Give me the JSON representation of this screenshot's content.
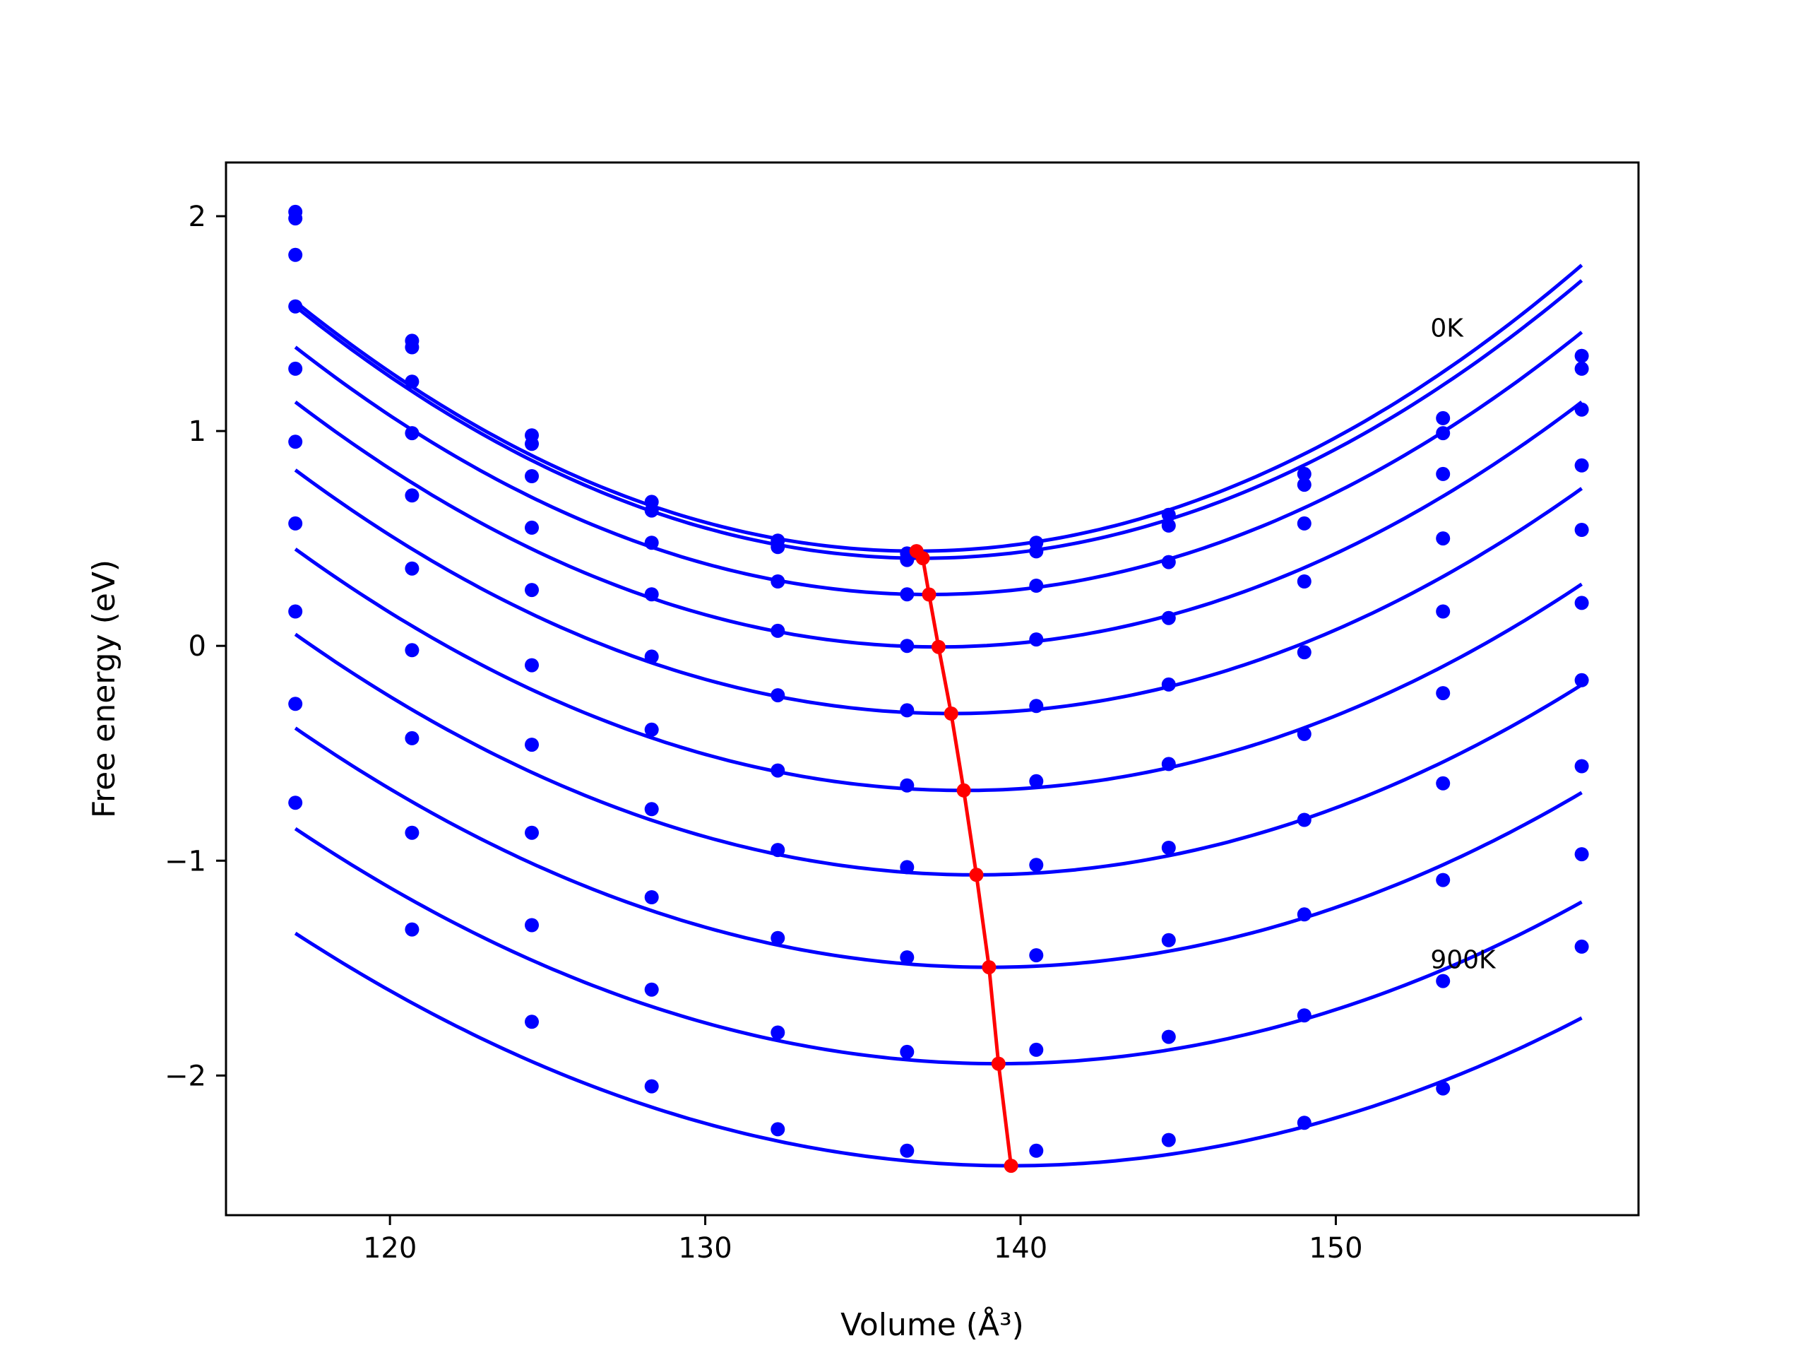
{
  "chart_data": {
    "type": "scatter",
    "title": "",
    "xlabel": "Volume (Å³)",
    "ylabel": "Free energy (eV)",
    "xlim": [
      114.8,
      159.6
    ],
    "ylim": [
      -2.65,
      2.25
    ],
    "xticks": [
      120,
      130,
      140,
      150
    ],
    "xtick_labels": [
      "120",
      "130",
      "140",
      "150"
    ],
    "yticks": [
      -2,
      -1,
      0,
      1,
      2
    ],
    "ytick_labels": [
      "−2",
      "−1",
      "0",
      "1",
      "2"
    ],
    "grid": false,
    "legend": "none",
    "annotations": [
      {
        "text": "0K",
        "x": 153.0,
        "y": 1.44
      },
      {
        "text": "900K",
        "x": 153.0,
        "y": -1.5
      }
    ],
    "colors": {
      "data": "#0000ff",
      "minima": "#ff0000"
    },
    "volumes": [
      117.0,
      120.7,
      124.5,
      128.3,
      132.3,
      136.4,
      140.5,
      144.7,
      149.0,
      153.4,
      157.8
    ],
    "series": [
      {
        "energies": [
          2.02,
          1.42,
          0.98,
          0.67,
          0.49,
          0.43,
          0.48,
          0.61,
          0.8,
          1.06,
          1.35
        ],
        "fit": {
          "a": 0.00299,
          "v0": 136.7,
          "e0": 0.441,
          "vmin": 117.0,
          "vmax": 157.8
        }
      },
      {
        "energies": [
          1.99,
          1.39,
          0.94,
          0.63,
          0.46,
          0.4,
          0.44,
          0.56,
          0.75,
          0.99,
          1.29
        ],
        "fit": {
          "a": 0.00296,
          "v0": 136.9,
          "e0": 0.408,
          "vmin": 117.0,
          "vmax": 157.8
        }
      },
      {
        "energies": [
          1.82,
          1.23,
          0.79,
          0.48,
          0.3,
          0.24,
          0.28,
          0.39,
          0.57,
          0.8,
          1.1
        ],
        "fit": {
          "a": 0.00285,
          "v0": 137.1,
          "e0": 0.239,
          "vmin": 117.0,
          "vmax": 157.8
        }
      },
      {
        "energies": [
          1.58,
          0.99,
          0.55,
          0.24,
          0.07,
          0.0,
          0.03,
          0.13,
          0.3,
          0.5,
          0.84
        ],
        "fit": {
          "a": 0.00274,
          "v0": 137.4,
          "e0": -0.005,
          "vmin": 117.0,
          "vmax": 157.8
        }
      },
      {
        "energies": [
          1.29,
          0.7,
          0.26,
          -0.05,
          -0.23,
          -0.3,
          -0.28,
          -0.18,
          -0.03,
          0.16,
          0.54
        ],
        "fit": {
          "a": 0.00262,
          "v0": 137.8,
          "e0": -0.315,
          "vmin": 117.0,
          "vmax": 157.8
        }
      },
      {
        "energies": [
          0.95,
          0.36,
          -0.09,
          -0.39,
          -0.58,
          -0.65,
          -0.63,
          -0.55,
          -0.41,
          -0.22,
          0.2
        ],
        "fit": {
          "a": 0.0025,
          "v0": 138.2,
          "e0": -0.673,
          "vmin": 117.0,
          "vmax": 157.8
        }
      },
      {
        "energies": [
          0.57,
          -0.02,
          -0.46,
          -0.76,
          -0.95,
          -1.03,
          -1.02,
          -0.94,
          -0.81,
          -0.64,
          -0.16
        ],
        "fit": {
          "a": 0.0024,
          "v0": 138.6,
          "e0": -1.066,
          "vmin": 117.0,
          "vmax": 157.8
        }
      },
      {
        "energies": [
          0.16,
          -0.43,
          -0.87,
          -1.17,
          -1.36,
          -1.45,
          -1.44,
          -1.37,
          -1.25,
          -1.09,
          -0.56
        ],
        "fit": {
          "a": 0.0023,
          "v0": 139.0,
          "e0": -1.496,
          "vmin": 117.0,
          "vmax": 157.8
        }
      },
      {
        "energies": [
          -0.27,
          -0.87,
          -1.3,
          -1.6,
          -1.8,
          -1.89,
          -1.88,
          -1.82,
          -1.72,
          -1.56,
          -0.97
        ],
        "fit": {
          "a": 0.0022,
          "v0": 139.3,
          "e0": -1.945,
          "vmin": 117.0,
          "vmax": 157.8
        }
      },
      {
        "energies": [
          -0.73,
          -1.32,
          -1.75,
          -2.05,
          -2.25,
          -2.35,
          -2.35,
          -2.3,
          -2.22,
          -2.06,
          -1.4
        ],
        "fit": {
          "a": 0.0021,
          "v0": 139.7,
          "e0": -2.42,
          "vmin": 117.0,
          "vmax": 157.8
        }
      }
    ],
    "minima_line": {
      "x": [
        136.7,
        136.9,
        137.1,
        137.4,
        137.8,
        138.2,
        138.6,
        139.0,
        139.3,
        139.7
      ],
      "y": [
        0.441,
        0.408,
        0.239,
        -0.005,
        -0.315,
        -0.673,
        -1.066,
        -1.496,
        -1.945,
        -2.42
      ]
    }
  }
}
